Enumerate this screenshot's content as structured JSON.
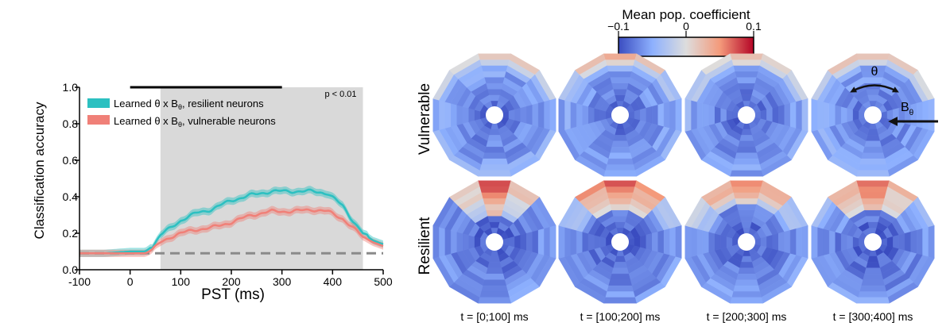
{
  "chart_data": [
    {
      "type": "line",
      "xlabel": "PST (ms)",
      "ylabel": "Classification accuracy",
      "xlim": [
        -100,
        500
      ],
      "ylim": [
        0,
        1
      ],
      "xticks": [
        "-100",
        "0",
        "100",
        "200",
        "300",
        "400",
        "500"
      ],
      "xtick_values": [
        -100,
        0,
        100,
        200,
        300,
        400,
        500
      ],
      "yticks": [
        "0.0",
        "0.2",
        "0.4",
        "0.6",
        "0.8",
        "1.0"
      ],
      "ytick_values": [
        0,
        0.2,
        0.4,
        0.6,
        0.8,
        1.0
      ],
      "shaded_region": {
        "x_range": [
          60,
          460
        ],
        "color": "#d9d9d9"
      },
      "significance_bar": {
        "x_range": [
          0,
          300
        ],
        "y": 1.0
      },
      "annotation": "p < 0.01",
      "chance_level": 0.09,
      "legend_placement": "top-left",
      "series": [
        {
          "name_prefix": "Learned θ x B",
          "name_sub": "θ",
          "name_suffix": ", resilient neurons",
          "color": "#2cc0c1",
          "x": [
            -100,
            -50,
            0,
            30,
            45,
            60,
            80,
            100,
            130,
            160,
            200,
            240,
            280,
            320,
            360,
            390,
            420,
            440,
            460,
            480,
            500
          ],
          "y": [
            0.09,
            0.09,
            0.1,
            0.1,
            0.13,
            0.19,
            0.23,
            0.27,
            0.31,
            0.33,
            0.38,
            0.41,
            0.43,
            0.43,
            0.43,
            0.42,
            0.35,
            0.27,
            0.2,
            0.16,
            0.14
          ],
          "band": 0.02
        },
        {
          "name_prefix": "Learned θ x B",
          "name_sub": "θ",
          "name_suffix": ", vulnerable neurons",
          "color": "#f08078",
          "x": [
            -100,
            -50,
            0,
            30,
            45,
            60,
            80,
            100,
            130,
            160,
            200,
            240,
            280,
            320,
            360,
            390,
            420,
            440,
            460,
            480,
            500
          ],
          "y": [
            0.09,
            0.09,
            0.09,
            0.09,
            0.11,
            0.15,
            0.18,
            0.2,
            0.22,
            0.23,
            0.26,
            0.3,
            0.32,
            0.32,
            0.33,
            0.32,
            0.28,
            0.23,
            0.18,
            0.15,
            0.13
          ],
          "band": 0.02
        }
      ]
    },
    {
      "type": "heatmap",
      "colorbar": {
        "title": "Mean pop. coefficient",
        "min_label": "−0.1",
        "mid_label": "0",
        "max_label": "0.1",
        "range": [
          -0.1,
          0.1
        ]
      },
      "row_labels": [
        {
          "text": "Vulnerable",
          "color": "#f08078"
        },
        {
          "text": "Resilient",
          "color": "#2cc0c1"
        }
      ],
      "column_labels": [
        "t = [0;100] ms",
        "t = [100;200] ms",
        "t = [200;300] ms",
        "t = [300;400] ms"
      ],
      "sectors": 12,
      "rings": 9,
      "annotations": {
        "angle_symbol": "θ",
        "radius_symbol": "B",
        "radius_subscript": "θ"
      },
      "panels": [
        {
          "row": "Vulnerable",
          "window": "t = [0;100] ms",
          "peak": 0.045,
          "top_rings": 2,
          "sharp": 0.8,
          "floor": -0.082,
          "seed": 3
        },
        {
          "row": "Vulnerable",
          "window": "t = [100;200] ms",
          "peak": 0.075,
          "top_rings": 2,
          "sharp": 1.0,
          "floor": -0.082,
          "seed": 7
        },
        {
          "row": "Vulnerable",
          "window": "t = [200;300] ms",
          "peak": 0.06,
          "top_rings": 2,
          "sharp": 0.8,
          "floor": -0.085,
          "seed": 11
        },
        {
          "row": "Vulnerable",
          "window": "t = [300;400] ms",
          "peak": 0.055,
          "top_rings": 2,
          "sharp": 0.8,
          "floor": -0.08,
          "seed": 13
        },
        {
          "row": "Resilient",
          "window": "t = [0;100] ms",
          "peak": 0.098,
          "top_rings": 6,
          "sharp": 1.4,
          "floor": -0.09,
          "seed": 17
        },
        {
          "row": "Resilient",
          "window": "t = [100;200] ms",
          "peak": 0.1,
          "top_rings": 5,
          "sharp": 1.1,
          "floor": -0.09,
          "seed": 19
        },
        {
          "row": "Resilient",
          "window": "t = [200;300] ms",
          "peak": 0.085,
          "top_rings": 4,
          "sharp": 1.0,
          "floor": -0.088,
          "seed": 23
        },
        {
          "row": "Resilient",
          "window": "t = [300;400] ms",
          "peak": 0.095,
          "top_rings": 5,
          "sharp": 1.2,
          "floor": -0.09,
          "seed": 29
        }
      ]
    }
  ]
}
